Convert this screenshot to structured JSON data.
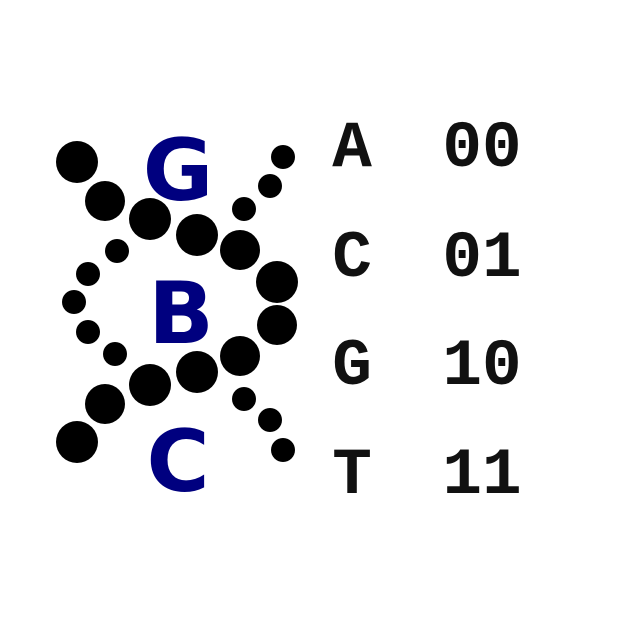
{
  "colors": {
    "logo_letters": "#00007f",
    "beads": "#000000",
    "code_text": "#111111",
    "background": "#ffffff"
  },
  "logo": {
    "letters": [
      "G",
      "B",
      "C"
    ]
  },
  "encoding_table": [
    {
      "base": "A",
      "code": "00"
    },
    {
      "base": "C",
      "code": "01"
    },
    {
      "base": "G",
      "code": "10"
    },
    {
      "base": "T",
      "code": "11"
    }
  ]
}
